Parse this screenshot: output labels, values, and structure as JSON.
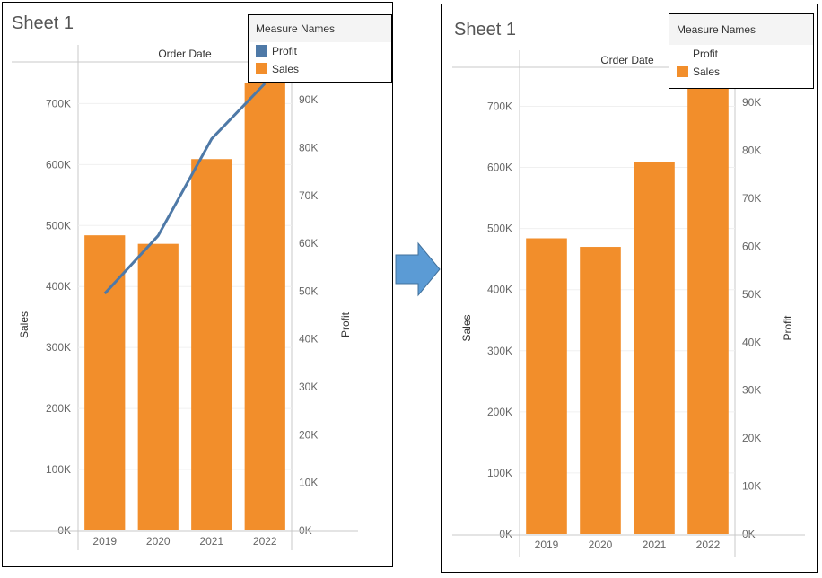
{
  "left_panel": {
    "sheet_title": "Sheet 1",
    "column_header": "Order Date",
    "legend": {
      "title": "Measure Names",
      "items": [
        {
          "label": "Profit",
          "color": "#4e79a7",
          "show_swatch": true
        },
        {
          "label": "Sales",
          "color": "#f28e2b",
          "show_swatch": true
        }
      ]
    }
  },
  "right_panel": {
    "sheet_title": "Sheet 1",
    "column_header": "Order Date",
    "legend": {
      "title": "Measure Names",
      "items": [
        {
          "label": "Profit",
          "color": "#4e79a7",
          "show_swatch": false
        },
        {
          "label": "Sales",
          "color": "#f28e2b",
          "show_swatch": true
        }
      ]
    }
  },
  "arrow_icon": "right-arrow-icon",
  "chart_data": [
    {
      "type": "bar",
      "title": "Sheet 1",
      "xlabel": "Order Date",
      "ylabel": "Sales",
      "y2label": "Profit",
      "categories": [
        "2019",
        "2020",
        "2021",
        "2022"
      ],
      "series": [
        {
          "name": "Sales",
          "type": "bar",
          "axis": "left",
          "color": "#f28e2b",
          "values": [
            484000,
            470000,
            609000,
            733000
          ]
        },
        {
          "name": "Profit",
          "type": "line",
          "axis": "right",
          "color": "#4e79a7",
          "values": [
            49500,
            61600,
            81800,
            93400
          ]
        }
      ],
      "ylim": [
        0,
        733000
      ],
      "y2lim": [
        0,
        93400
      ],
      "yticks": [
        "0K",
        "100K",
        "200K",
        "300K",
        "400K",
        "500K",
        "600K",
        "700K"
      ],
      "y2ticks": [
        "0K",
        "10K",
        "20K",
        "30K",
        "40K",
        "50K",
        "60K",
        "70K",
        "80K",
        "90K"
      ],
      "legend": "top-right",
      "grid": true
    },
    {
      "type": "bar",
      "title": "Sheet 1",
      "xlabel": "Order Date",
      "ylabel": "Sales",
      "y2label": "Profit",
      "categories": [
        "2019",
        "2020",
        "2021",
        "2022"
      ],
      "series": [
        {
          "name": "Sales",
          "type": "bar",
          "axis": "left",
          "color": "#f28e2b",
          "values": [
            484000,
            470000,
            609000,
            733000
          ]
        }
      ],
      "ylim": [
        0,
        733000
      ],
      "y2lim": [
        0,
        93400
      ],
      "yticks": [
        "0K",
        "100K",
        "200K",
        "300K",
        "400K",
        "500K",
        "600K",
        "700K"
      ],
      "y2ticks": [
        "0K",
        "10K",
        "20K",
        "30K",
        "40K",
        "50K",
        "60K",
        "70K",
        "80K",
        "90K"
      ],
      "legend": "top-right",
      "grid": true
    }
  ]
}
